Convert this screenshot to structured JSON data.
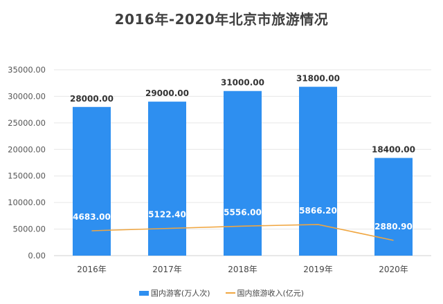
{
  "chart_data": {
    "type": "bar+line",
    "title": "2016年-2020年北京市旅游情况",
    "categories": [
      "2016年",
      "2017年",
      "2018年",
      "2019年",
      "2020年"
    ],
    "series": [
      {
        "name": "国内游客(万人次)",
        "type": "bar",
        "color": "#2e8ff0",
        "values": [
          28000.0,
          29000.0,
          31000.0,
          31800.0,
          18400.0
        ],
        "labels": [
          "28000.00",
          "29000.00",
          "31000.00",
          "31800.00",
          "18400.00"
        ]
      },
      {
        "name": "国内旅游收入(亿元)",
        "type": "line",
        "color": "#f0a640",
        "values": [
          4683.0,
          5122.4,
          5556.0,
          5866.2,
          2880.9
        ],
        "labels": [
          "4683.00",
          "5122.40",
          "5556.00",
          "5866.20",
          "2880.90"
        ]
      }
    ],
    "yticks": [
      "0.00",
      "5000.00",
      "10000.00",
      "15000.00",
      "20000.00",
      "25000.00",
      "30000.00",
      "35000.00"
    ],
    "ylim": [
      0,
      35000
    ],
    "xlabel": "",
    "ylabel": "",
    "grid": true,
    "legend_position": "bottom"
  },
  "legend": {
    "bar_label": "国内游客(万人次)",
    "line_label": "国内旅游收入(亿元)"
  }
}
